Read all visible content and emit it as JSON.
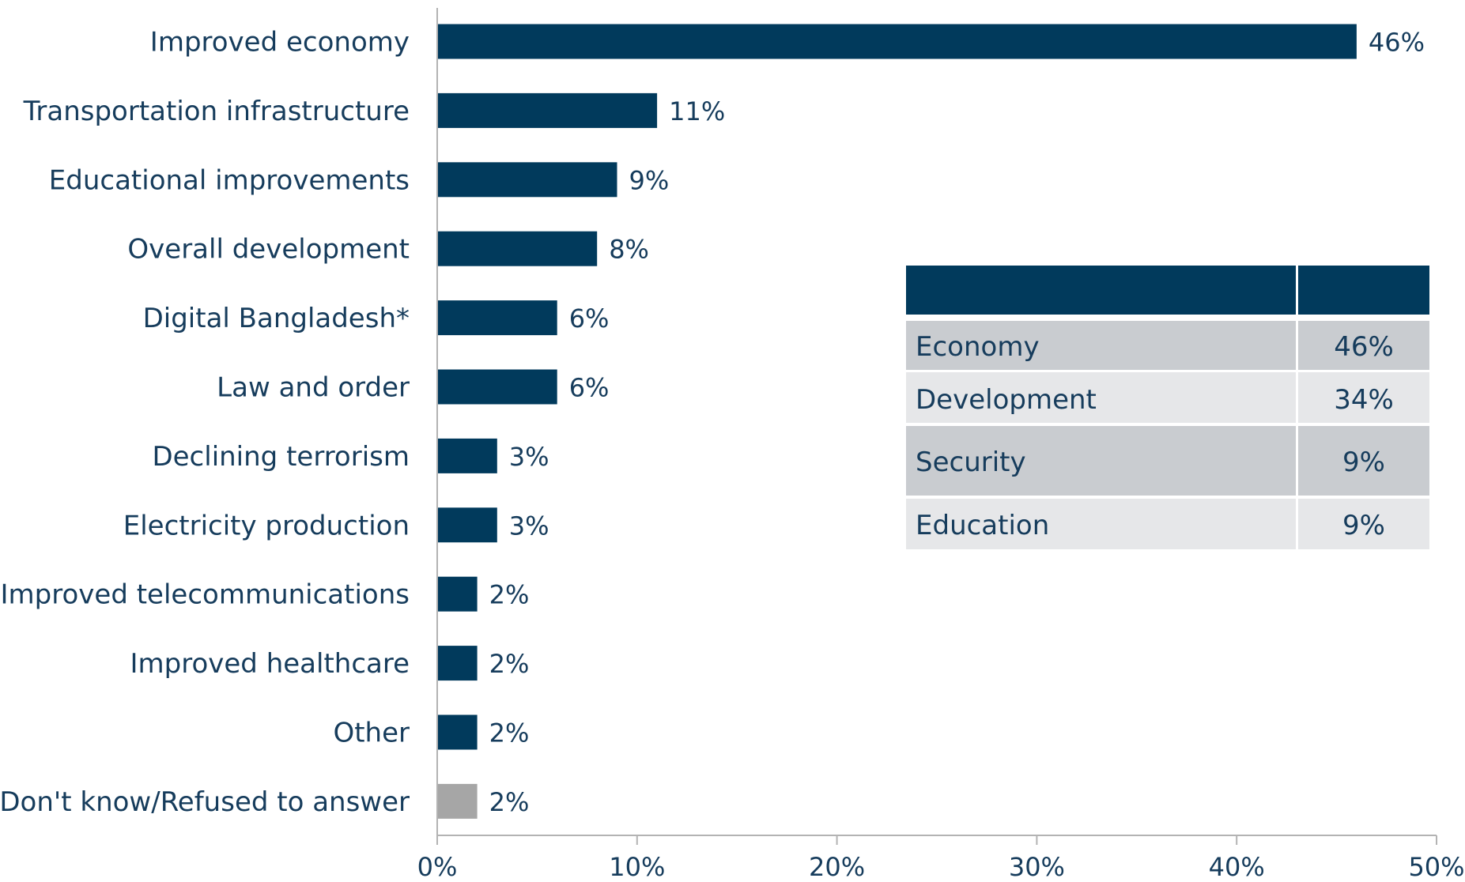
{
  "chart_data": {
    "type": "bar",
    "orientation": "horizontal",
    "categories": [
      "Improved economy",
      "Transportation infrastructure",
      "Educational improvements",
      "Overall development",
      "Digital Bangladesh*",
      "Law and order",
      "Declining terrorism",
      "Electricity production",
      "Improved telecommunications",
      "Improved healthcare",
      "Other",
      "Don't know/Refused to answer"
    ],
    "values": [
      46,
      11,
      9,
      8,
      6,
      6,
      3,
      3,
      2,
      2,
      2,
      2
    ],
    "value_labels": [
      "46%",
      "11%",
      "9%",
      "8%",
      "6%",
      "6%",
      "3%",
      "3%",
      "2%",
      "2%",
      "2%",
      "2%"
    ],
    "bar_colors": [
      "#013a5c",
      "#013a5c",
      "#013a5c",
      "#013a5c",
      "#013a5c",
      "#013a5c",
      "#013a5c",
      "#013a5c",
      "#013a5c",
      "#013a5c",
      "#013a5c",
      "#a6a6a6"
    ],
    "xlim": [
      0,
      50
    ],
    "xticks": [
      0,
      10,
      20,
      30,
      40,
      50
    ],
    "xtick_labels": [
      "0%",
      "10%",
      "20%",
      "30%",
      "40%",
      "50%"
    ],
    "title": "",
    "xlabel": "",
    "ylabel": "",
    "grid": false,
    "legend": "none"
  },
  "summary_table": {
    "header": [
      "",
      ""
    ],
    "rows": [
      {
        "label": "Economy",
        "value": "46%"
      },
      {
        "label": "Development",
        "value": "34%"
      },
      {
        "label": "Security",
        "value": "9%"
      },
      {
        "label": "Education",
        "value": "9%"
      }
    ]
  },
  "colors": {
    "bar": "#013a5c",
    "bar_muted": "#a6a6a6",
    "text": "#163c5c",
    "axis": "#b3b3b3",
    "table_header": "#013a5c",
    "table_row_dark": "#c9ccd0",
    "table_row_light": "#e6e7e9"
  }
}
